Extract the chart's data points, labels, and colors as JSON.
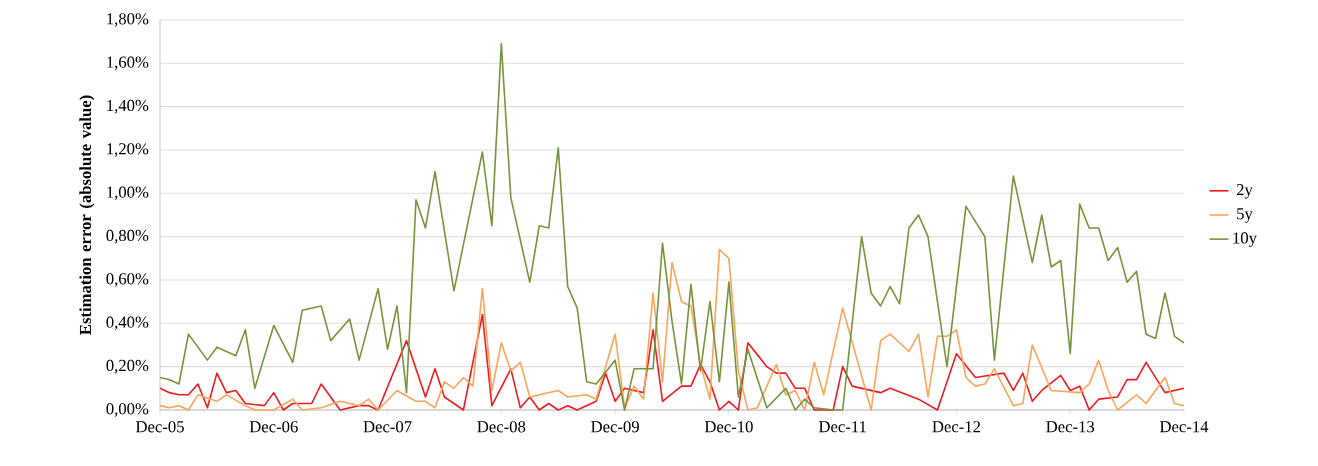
{
  "chart_data": {
    "type": "line",
    "ylabel": "Estimation error (absolute value)",
    "xlim": [
      "2005-12",
      "2014-12"
    ],
    "xticks": [
      {
        "value": "2005-12",
        "label": "Dec-05"
      },
      {
        "value": "2006-12",
        "label": "Dec-06"
      },
      {
        "value": "2007-12",
        "label": "Dec-07"
      },
      {
        "value": "2008-12",
        "label": "Dec-08"
      },
      {
        "value": "2009-12",
        "label": "Dec-09"
      },
      {
        "value": "2010-12",
        "label": "Dec-10"
      },
      {
        "value": "2011-12",
        "label": "Dec-11"
      },
      {
        "value": "2012-12",
        "label": "Dec-12"
      },
      {
        "value": "2013-12",
        "label": "Dec-13"
      },
      {
        "value": "2014-12",
        "label": "Dec-14"
      }
    ],
    "ylim": [
      0,
      1.8
    ],
    "yticks": [
      {
        "value": 0,
        "label": "0,00%"
      },
      {
        "value": 0.2,
        "label": "0,20%"
      },
      {
        "value": 0.4,
        "label": "0,40%"
      },
      {
        "value": 0.6,
        "label": "0,60%"
      },
      {
        "value": 0.8,
        "label": "0,80%"
      },
      {
        "value": 1.0,
        "label": "1,00%"
      },
      {
        "value": 1.2,
        "label": "1,20%"
      },
      {
        "value": 1.4,
        "label": "1,40%"
      },
      {
        "value": 1.6,
        "label": "1,60%"
      },
      {
        "value": 1.8,
        "label": "1,80%"
      }
    ],
    "grid": "y",
    "legend": "right",
    "marker": "none",
    "line_style": "solid",
    "series": [
      {
        "name": "2y",
        "color": "#ec1c24",
        "x": [
          "2005-12",
          "2006-01",
          "2006-02",
          "2006-03",
          "2006-04",
          "2006-05",
          "2006-06",
          "2006-07",
          "2006-08",
          "2006-09",
          "2006-11",
          "2006-12",
          "2007-01",
          "2007-02",
          "2007-04",
          "2007-05",
          "2007-07",
          "2007-09",
          "2007-10",
          "2007-11",
          "2008-02",
          "2008-04",
          "2008-05",
          "2008-06",
          "2008-08",
          "2008-10",
          "2008-11",
          "2009-01",
          "2009-02",
          "2009-03",
          "2009-04",
          "2009-05",
          "2009-06",
          "2009-07",
          "2009-08",
          "2009-10",
          "2009-11",
          "2009-12",
          "2010-01",
          "2010-03",
          "2010-04",
          "2010-05",
          "2010-07",
          "2010-08",
          "2010-09",
          "2010-10",
          "2010-11",
          "2010-12",
          "2011-01",
          "2011-02",
          "2011-04",
          "2011-05",
          "2011-06",
          "2011-07",
          "2011-08",
          "2011-09",
          "2011-11",
          "2011-12",
          "2012-01",
          "2012-04",
          "2012-05",
          "2012-08",
          "2012-10",
          "2012-12",
          "2013-02",
          "2013-05",
          "2013-06",
          "2013-07",
          "2013-08",
          "2013-09",
          "2013-11",
          "2013-12",
          "2014-01",
          "2014-02",
          "2014-03",
          "2014-05",
          "2014-06",
          "2014-07",
          "2014-08",
          "2014-10",
          "2014-12"
        ],
        "values": [
          0.1,
          0.08,
          0.07,
          0.07,
          0.12,
          0.01,
          0.17,
          0.08,
          0.09,
          0.03,
          0.02,
          0.08,
          0.0,
          0.03,
          0.03,
          0.12,
          0.0,
          0.02,
          0.02,
          0.0,
          0.32,
          0.06,
          0.19,
          0.06,
          0.0,
          0.44,
          0.02,
          0.19,
          0.01,
          0.06,
          0.0,
          0.03,
          0.0,
          0.02,
          0.0,
          0.04,
          0.17,
          0.04,
          0.1,
          0.08,
          0.37,
          0.04,
          0.11,
          0.11,
          0.21,
          0.13,
          0.0,
          0.04,
          0.0,
          0.31,
          0.2,
          0.17,
          0.17,
          0.1,
          0.1,
          0.0,
          0.0,
          0.2,
          0.11,
          0.08,
          0.1,
          0.05,
          0.0,
          0.26,
          0.15,
          0.17,
          0.09,
          0.17,
          0.04,
          0.09,
          0.16,
          0.09,
          0.11,
          0.0,
          0.05,
          0.06,
          0.14,
          0.14,
          0.22,
          0.08,
          0.1
        ]
      },
      {
        "name": "5y",
        "color": "#f9a55a",
        "x": [
          "2005-12",
          "2006-01",
          "2006-02",
          "2006-03",
          "2006-04",
          "2006-06",
          "2006-07",
          "2006-09",
          "2006-10",
          "2006-12",
          "2007-02",
          "2007-03",
          "2007-05",
          "2007-07",
          "2007-09",
          "2007-10",
          "2007-11",
          "2008-01",
          "2008-03",
          "2008-04",
          "2008-05",
          "2008-06",
          "2008-07",
          "2008-08",
          "2008-09",
          "2008-10",
          "2008-11",
          "2008-12",
          "2009-01",
          "2009-02",
          "2009-03",
          "2009-04",
          "2009-06",
          "2009-07",
          "2009-09",
          "2009-10",
          "2009-12",
          "2010-01",
          "2010-02",
          "2010-03",
          "2010-04",
          "2010-05",
          "2010-06",
          "2010-07",
          "2010-08",
          "2010-09",
          "2010-10",
          "2010-11",
          "2010-12",
          "2011-01",
          "2011-02",
          "2011-03",
          "2011-05",
          "2011-06",
          "2011-07",
          "2011-08",
          "2011-09",
          "2011-10",
          "2011-12",
          "2012-03",
          "2012-04",
          "2012-05",
          "2012-07",
          "2012-08",
          "2012-09",
          "2012-10",
          "2012-11",
          "2012-12",
          "2013-01",
          "2013-02",
          "2013-03",
          "2013-04",
          "2013-06",
          "2013-07",
          "2013-08",
          "2013-10",
          "2014-01",
          "2014-02",
          "2014-03",
          "2014-04",
          "2014-05",
          "2014-07",
          "2014-08",
          "2014-10",
          "2014-11",
          "2014-12"
        ],
        "values": [
          0.02,
          0.01,
          0.02,
          0.0,
          0.07,
          0.04,
          0.07,
          0.02,
          0.0,
          0.0,
          0.05,
          0.0,
          0.01,
          0.04,
          0.02,
          0.05,
          0.0,
          0.09,
          0.04,
          0.04,
          0.01,
          0.13,
          0.1,
          0.15,
          0.11,
          0.56,
          0.09,
          0.31,
          0.18,
          0.22,
          0.06,
          0.07,
          0.09,
          0.06,
          0.07,
          0.05,
          0.35,
          0.01,
          0.11,
          0.05,
          0.54,
          0.13,
          0.68,
          0.5,
          0.48,
          0.21,
          0.05,
          0.74,
          0.7,
          0.18,
          0.0,
          0.01,
          0.21,
          0.07,
          0.09,
          0.0,
          0.22,
          0.07,
          0.47,
          0.0,
          0.32,
          0.35,
          0.27,
          0.35,
          0.06,
          0.34,
          0.34,
          0.37,
          0.15,
          0.11,
          0.12,
          0.19,
          0.02,
          0.03,
          0.3,
          0.09,
          0.08,
          0.12,
          0.23,
          0.09,
          0.0,
          0.07,
          0.03,
          0.15,
          0.03,
          0.02
        ]
      },
      {
        "name": "10y",
        "color": "#77933c",
        "x": [
          "2005-12",
          "2006-01",
          "2006-02",
          "2006-03",
          "2006-05",
          "2006-06",
          "2006-08",
          "2006-09",
          "2006-10",
          "2006-12",
          "2007-02",
          "2007-03",
          "2007-05",
          "2007-06",
          "2007-08",
          "2007-09",
          "2007-11",
          "2007-12",
          "2008-01",
          "2008-02",
          "2008-03",
          "2008-04",
          "2008-05",
          "2008-07",
          "2008-10",
          "2008-11",
          "2008-12",
          "2009-01",
          "2009-03",
          "2009-04",
          "2009-05",
          "2009-06",
          "2009-07",
          "2009-08",
          "2009-09",
          "2009-10",
          "2009-12",
          "2010-01",
          "2010-02",
          "2010-04",
          "2010-05",
          "2010-06",
          "2010-07",
          "2010-08",
          "2010-09",
          "2010-10",
          "2010-11",
          "2010-12",
          "2011-01",
          "2011-02",
          "2011-04",
          "2011-06",
          "2011-07",
          "2011-08",
          "2011-09",
          "2011-11",
          "2011-12",
          "2012-02",
          "2012-03",
          "2012-04",
          "2012-05",
          "2012-06",
          "2012-07",
          "2012-08",
          "2012-09",
          "2012-11",
          "2013-01",
          "2013-03",
          "2013-04",
          "2013-06",
          "2013-08",
          "2013-09",
          "2013-10",
          "2013-11",
          "2013-12",
          "2014-01",
          "2014-02",
          "2014-03",
          "2014-04",
          "2014-05",
          "2014-06",
          "2014-07",
          "2014-08",
          "2014-09",
          "2014-10",
          "2014-11",
          "2014-12"
        ],
        "values": [
          0.15,
          0.14,
          0.12,
          0.35,
          0.23,
          0.29,
          0.25,
          0.37,
          0.1,
          0.39,
          0.22,
          0.46,
          0.48,
          0.32,
          0.42,
          0.23,
          0.56,
          0.28,
          0.48,
          0.08,
          0.97,
          0.84,
          1.1,
          0.55,
          1.19,
          0.85,
          1.69,
          0.98,
          0.59,
          0.85,
          0.84,
          1.21,
          0.57,
          0.47,
          0.13,
          0.12,
          0.23,
          0.0,
          0.19,
          0.19,
          0.77,
          0.41,
          0.12,
          0.58,
          0.18,
          0.5,
          0.13,
          0.59,
          0.06,
          0.28,
          0.01,
          0.1,
          0.0,
          0.05,
          0.01,
          0.0,
          0.0,
          0.8,
          0.54,
          0.48,
          0.57,
          0.49,
          0.84,
          0.9,
          0.8,
          0.2,
          0.94,
          0.8,
          0.23,
          1.08,
          0.68,
          0.9,
          0.66,
          0.69,
          0.26,
          0.95,
          0.84,
          0.84,
          0.69,
          0.75,
          0.59,
          0.64,
          0.35,
          0.33,
          0.54,
          0.34,
          0.31
        ]
      }
    ]
  }
}
